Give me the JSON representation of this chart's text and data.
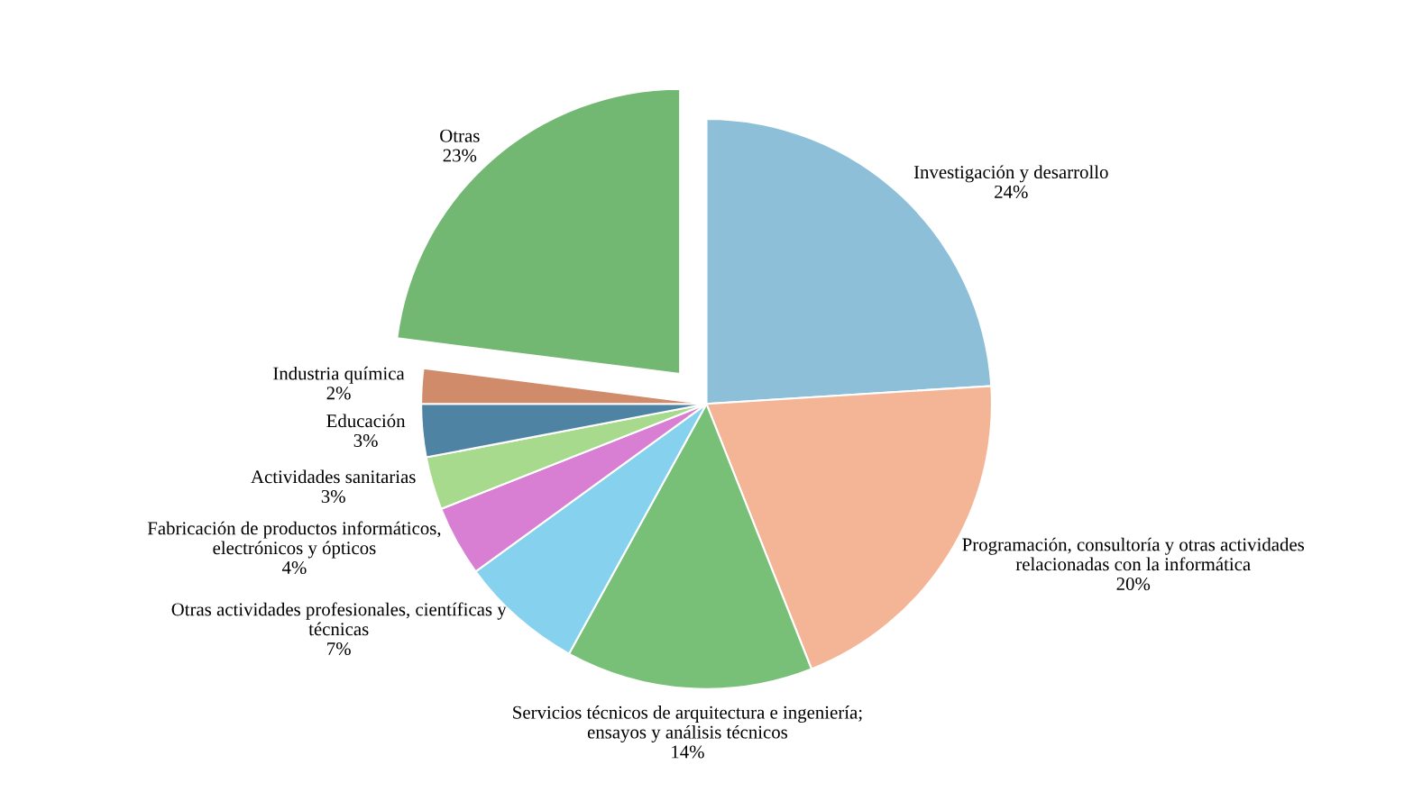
{
  "chart_data": {
    "type": "pie",
    "categories": [
      "Investigación y desarrollo",
      "Programación, consultoría y otras actividades\nrelacionadas con la informática",
      "Servicios técnicos de arquitectura e ingeniería;\nensayos y análisis técnicos",
      "Otras actividades profesionales, científicas y\ntécnicas",
      "Fabricación de productos informáticos,\nelectrónicos y ópticos",
      "Actividades sanitarias",
      "Educación",
      "Industria química",
      "Otras"
    ],
    "values": [
      24,
      20,
      14,
      7,
      4,
      3,
      3,
      2,
      23
    ],
    "value_labels": [
      "24%",
      "20%",
      "14%",
      "7%",
      "4%",
      "3%",
      "3%",
      "2%",
      "23%"
    ],
    "colors": [
      "#8ebfd8",
      "#f3b596",
      "#78bf78",
      "#86d2ee",
      "#d87fd3",
      "#a8da8e",
      "#4f83a3",
      "#d08b6b",
      "#72b872"
    ],
    "legend": false
  }
}
